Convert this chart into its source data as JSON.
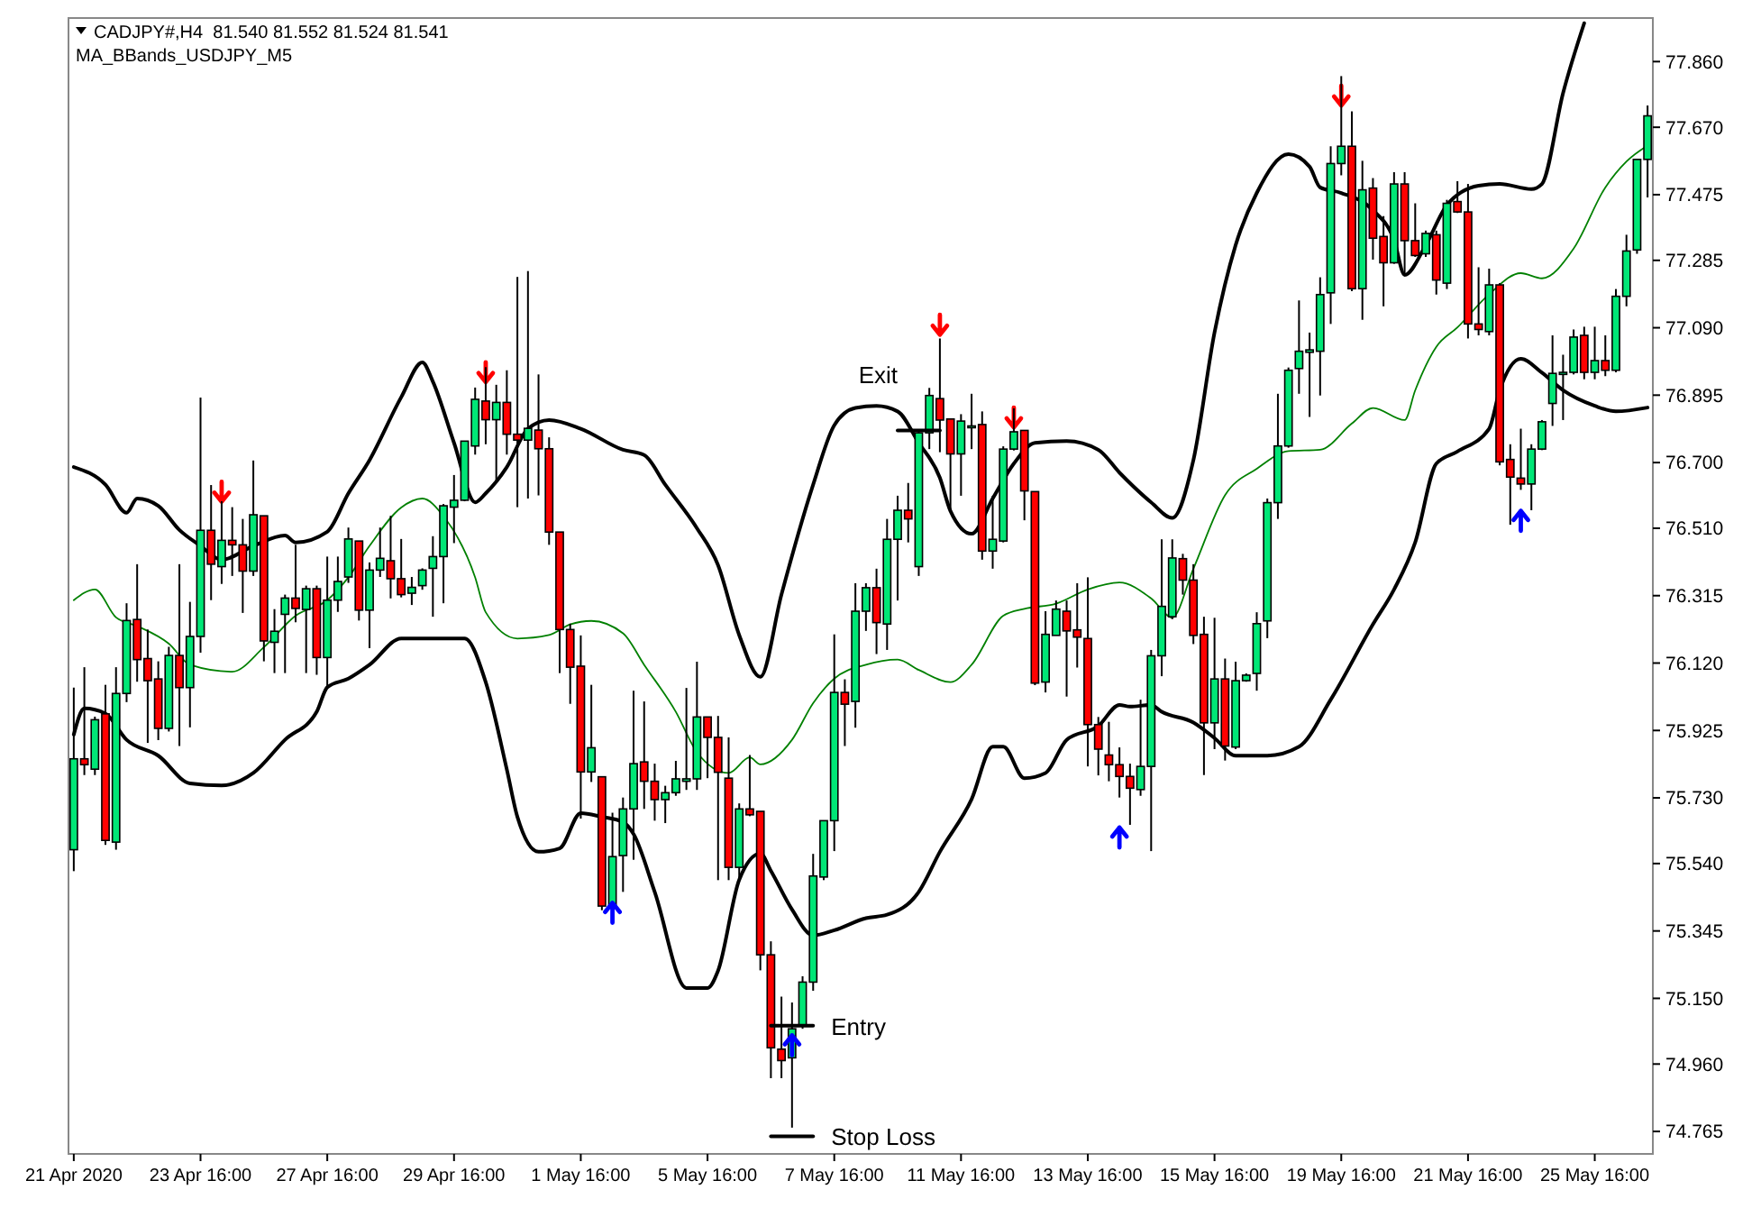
{
  "chart_data": {
    "type": "candlestick",
    "title": "CADJPY#,H4  81.540 81.552 81.524 81.541",
    "subtitle": "MA_BBands_USDJPY_M5",
    "categories": [
      "21 Apr 2020",
      null,
      null,
      null,
      null,
      null,
      null,
      null,
      null,
      null,
      null,
      null,
      "23 Apr 16:00",
      null,
      null,
      null,
      null,
      null,
      null,
      null,
      null,
      null,
      null,
      null,
      "27 Apr 16:00",
      null,
      null,
      null,
      null,
      null,
      null,
      null,
      null,
      null,
      null,
      null,
      "29 Apr 16:00",
      null,
      null,
      null,
      null,
      null,
      null,
      null,
      null,
      null,
      null,
      null,
      "1 May 16:00",
      null,
      null,
      null,
      null,
      null,
      null,
      null,
      null,
      null,
      null,
      null,
      "5 May 16:00",
      null,
      null,
      null,
      null,
      null,
      null,
      null,
      null,
      null,
      null,
      null,
      "7 May 16:00",
      null,
      null,
      null,
      null,
      null,
      null,
      null,
      null,
      null,
      null,
      null,
      "11 May 16:00",
      null,
      null,
      null,
      null,
      null,
      null,
      null,
      null,
      null,
      null,
      null,
      "13 May 16:00",
      null,
      null,
      null,
      null,
      null,
      null,
      null,
      null,
      null,
      null,
      null,
      "15 May 16:00",
      null,
      null,
      null,
      null,
      null,
      null,
      null,
      null,
      null,
      null,
      null,
      "19 May 16:00",
      null,
      null,
      null,
      null,
      null,
      null,
      null,
      null,
      null,
      null,
      null,
      "21 May 16:00",
      null,
      null,
      null,
      null,
      null,
      null,
      null,
      null,
      null,
      null,
      null,
      "25 May 16:00",
      null,
      null,
      null,
      null,
      null
    ],
    "colors": [
      "#00e676",
      "#ff0000",
      "#00e676",
      "#ff0000",
      "#00e676",
      "#00e676",
      "#ff0000",
      "#ff0000",
      "#ff0000",
      "#00e676",
      "#ff0000",
      "#00e676",
      "#00e676",
      "#ff0000",
      "#00e676",
      "#ff0000",
      "#ff0000",
      "#00e676",
      "#ff0000",
      "#00e676",
      "#00e676",
      "#ff0000",
      "#00e676",
      "#ff0000",
      "#00e676",
      "#00e676",
      "#00e676",
      "#ff0000",
      "#00e676",
      "#00e676",
      "#ff0000",
      "#ff0000",
      "#00e676",
      "#00e676",
      "#00e676",
      "#00e676",
      "#00e676",
      "#00e676",
      "#00e676",
      "#ff0000",
      "#00e676",
      "#ff0000",
      "#ff0000",
      "#00e676",
      "#ff0000",
      "#ff0000",
      "#ff0000",
      "#ff0000",
      "#ff0000",
      "#00e676",
      "#ff0000",
      "#00e676",
      "#00e676",
      "#00e676",
      "#ff0000",
      "#ff0000",
      "#00e676",
      "#00e676",
      "#00e676",
      "#00e676",
      "#ff0000",
      "#ff0000",
      "#ff0000",
      "#00e676",
      "#ff0000",
      "#ff0000",
      "#ff0000",
      "#ff0000",
      "#00e676",
      "#00e676",
      "#00e676",
      "#00e676",
      "#00e676",
      "#ff0000",
      "#00e676",
      "#00e676",
      "#ff0000",
      "#00e676",
      "#00e676",
      "#ff0000",
      "#00e676",
      "#00e676",
      "#ff0000",
      "#ff0000",
      "#00e676",
      "#00e676",
      "#ff0000",
      "#00e676",
      "#00e676",
      "#00e676",
      "#ff0000",
      "#ff0000",
      "#00e676",
      "#00e676",
      "#ff0000",
      "#ff0000",
      "#ff0000",
      "#ff0000",
      "#ff0000",
      "#ff0000",
      "#ff0000",
      "#00e676",
      "#00e676",
      "#00e676",
      "#00e676",
      "#ff0000",
      "#ff0000",
      "#ff0000",
      "#00e676",
      "#ff0000",
      "#00e676",
      "#00e676",
      "#00e676",
      "#00e676",
      "#00e676",
      "#00e676",
      "#00e676",
      "#00e676",
      "#00e676",
      "#00e676",
      "#00e676",
      "#ff0000",
      "#00e676",
      "#ff0000",
      "#ff0000",
      "#00e676",
      "#ff0000",
      "#ff0000",
      "#00e676",
      "#ff0000",
      "#00e676",
      "#ff0000",
      "#ff0000",
      "#ff0000",
      "#00e676",
      "#ff0000",
      "#ff0000",
      "#ff0000",
      "#00e676",
      "#00e676",
      "#00e676",
      "#00e676",
      "#00e676",
      "#ff0000",
      "#00e676",
      "#ff0000",
      "#00e676",
      "#00e676",
      "#00e676",
      "#00e676"
    ],
    "ohlc": [
      [
        75.58,
        76.049,
        75.518,
        75.843
      ],
      [
        75.843,
        76.108,
        75.796,
        75.826
      ],
      [
        75.813,
        75.965,
        75.796,
        75.956
      ],
      [
        75.973,
        76.057,
        75.594,
        75.607
      ],
      [
        75.602,
        76.108,
        75.58,
        76.032
      ],
      [
        76.032,
        76.293,
        76.007,
        76.243
      ],
      [
        76.246,
        76.406,
        76.066,
        76.13
      ],
      [
        76.133,
        76.217,
        75.889,
        76.069
      ],
      [
        76.074,
        76.125,
        75.897,
        75.931
      ],
      [
        75.931,
        76.167,
        75.922,
        76.142
      ],
      [
        76.142,
        76.406,
        75.88,
        76.049
      ],
      [
        76.049,
        76.297,
        75.934,
        76.197
      ],
      [
        76.197,
        76.888,
        76.15,
        76.504
      ],
      [
        76.504,
        76.635,
        76.302,
        76.406
      ],
      [
        76.399,
        76.588,
        76.349,
        76.475
      ],
      [
        76.475,
        76.571,
        76.372,
        76.462
      ],
      [
        76.462,
        76.537,
        76.265,
        76.386
      ],
      [
        76.386,
        76.706,
        76.372,
        76.549
      ],
      [
        76.546,
        76.546,
        76.125,
        76.184
      ],
      [
        76.18,
        76.276,
        76.091,
        76.212
      ],
      [
        76.261,
        76.318,
        76.091,
        76.308
      ],
      [
        76.308,
        76.462,
        76.238,
        76.278
      ],
      [
        76.275,
        76.344,
        76.091,
        76.335
      ],
      [
        76.335,
        76.344,
        76.086,
        76.136
      ],
      [
        76.136,
        76.428,
        76.049,
        76.302
      ],
      [
        76.302,
        76.428,
        76.268,
        76.356
      ],
      [
        76.369,
        76.512,
        76.352,
        76.479
      ],
      [
        76.473,
        76.473,
        76.243,
        76.273
      ],
      [
        76.273,
        76.411,
        76.163,
        76.389
      ],
      [
        76.389,
        76.512,
        76.369,
        76.423
      ],
      [
        76.416,
        76.546,
        76.307,
        76.364
      ],
      [
        76.364,
        76.479,
        76.31,
        76.318
      ],
      [
        76.322,
        76.369,
        76.288,
        76.339
      ],
      [
        76.344,
        76.394,
        76.332,
        76.389
      ],
      [
        76.394,
        76.487,
        76.254,
        76.428
      ],
      [
        76.428,
        76.58,
        76.293,
        76.575
      ],
      [
        76.571,
        76.664,
        76.467,
        76.591
      ],
      [
        76.591,
        76.762,
        76.588,
        76.762
      ],
      [
        76.748,
        76.917,
        76.723,
        76.883
      ],
      [
        76.878,
        76.976,
        76.753,
        76.824
      ],
      [
        76.824,
        76.925,
        76.642,
        76.874
      ],
      [
        76.874,
        76.967,
        76.723,
        76.782
      ],
      [
        76.782,
        77.237,
        76.571,
        76.765
      ],
      [
        76.765,
        77.254,
        76.596,
        76.799
      ],
      [
        76.794,
        76.955,
        76.605,
        76.74
      ],
      [
        76.74,
        76.773,
        76.462,
        76.499
      ],
      [
        76.499,
        76.499,
        76.091,
        76.217
      ],
      [
        76.217,
        76.234,
        76.002,
        76.108
      ],
      [
        76.111,
        76.2,
        75.67,
        75.805
      ],
      [
        75.805,
        76.057,
        75.776,
        75.875
      ],
      [
        75.791,
        75.791,
        75.405,
        75.417
      ],
      [
        75.417,
        75.687,
        75.408,
        75.56
      ],
      [
        75.563,
        75.731,
        75.458,
        75.698
      ],
      [
        75.698,
        76.04,
        75.551,
        75.829
      ],
      [
        75.834,
        76.009,
        75.698,
        75.778
      ],
      [
        75.778,
        75.829,
        75.664,
        75.725
      ],
      [
        75.725,
        75.765,
        75.657,
        75.745
      ],
      [
        75.745,
        75.837,
        75.736,
        75.785
      ],
      [
        75.778,
        76.048,
        75.753,
        75.785
      ],
      [
        75.785,
        76.124,
        75.753,
        75.964
      ],
      [
        75.964,
        75.964,
        75.787,
        75.905
      ],
      [
        75.905,
        75.967,
        75.492,
        75.804
      ],
      [
        75.787,
        75.905,
        75.492,
        75.529
      ],
      [
        75.529,
        75.714,
        75.495,
        75.698
      ],
      [
        75.698,
        75.854,
        75.677,
        75.681
      ],
      [
        75.691,
        75.691,
        75.231,
        75.276
      ],
      [
        75.276,
        75.315,
        74.919,
        75.007
      ],
      [
        75.003,
        75.155,
        74.919,
        74.97
      ],
      [
        74.978,
        75.138,
        74.776,
        75.062
      ],
      [
        75.071,
        75.214,
        75.062,
        75.197
      ],
      [
        75.197,
        75.568,
        75.172,
        75.504
      ],
      [
        75.501,
        75.664,
        75.492,
        75.664
      ],
      [
        75.664,
        76.203,
        75.576,
        76.035
      ],
      [
        76.035,
        76.073,
        75.88,
        76.001
      ],
      [
        76.009,
        76.351,
        75.933,
        76.27
      ],
      [
        76.27,
        76.351,
        76.213,
        76.338
      ],
      [
        76.338,
        76.393,
        76.146,
        76.237
      ],
      [
        76.233,
        76.537,
        76.158,
        76.478
      ],
      [
        76.478,
        76.604,
        76.301,
        76.562
      ],
      [
        76.562,
        76.641,
        76.469,
        76.537
      ],
      [
        76.399,
        76.793,
        76.372,
        76.786
      ],
      [
        76.786,
        76.916,
        76.739,
        76.894
      ],
      [
        76.885,
        77.059,
        76.73,
        76.823
      ],
      [
        76.826,
        76.826,
        76.562,
        76.725
      ],
      [
        76.725,
        76.84,
        76.604,
        76.82
      ],
      [
        76.806,
        76.899,
        76.739,
        76.806
      ],
      [
        76.81,
        76.848,
        76.419,
        76.444
      ],
      [
        76.444,
        76.604,
        76.393,
        76.478
      ],
      [
        76.473,
        76.747,
        76.469,
        76.739
      ],
      [
        76.739,
        76.857,
        76.735,
        76.789
      ],
      [
        76.793,
        76.793,
        76.533,
        76.618
      ],
      [
        76.616,
        76.616,
        76.056,
        76.062
      ],
      [
        76.065,
        76.27,
        76.035,
        76.203
      ],
      [
        76.2,
        76.301,
        76.2,
        76.276
      ],
      [
        76.27,
        76.301,
        76.023,
        76.213
      ],
      [
        76.216,
        76.351,
        76.107,
        76.195
      ],
      [
        76.191,
        76.368,
        75.821,
        75.942
      ],
      [
        75.942,
        75.964,
        75.795,
        75.871
      ],
      [
        75.854,
        75.95,
        75.778,
        75.826
      ],
      [
        75.826,
        75.876,
        75.731,
        75.792
      ],
      [
        75.792,
        75.829,
        75.652,
        75.758
      ],
      [
        75.754,
        76.014,
        75.736,
        75.821
      ],
      [
        75.821,
        76.158,
        75.576,
        76.141
      ],
      [
        76.141,
        76.478,
        76.082,
        76.284
      ],
      [
        76.254,
        76.478,
        76.247,
        76.424
      ],
      [
        76.422,
        76.436,
        76.318,
        76.36
      ],
      [
        76.36,
        76.406,
        76.175,
        76.2
      ],
      [
        76.203,
        76.254,
        75.796,
        75.947
      ],
      [
        75.947,
        76.251,
        75.871,
        76.074
      ],
      [
        76.074,
        76.133,
        75.838,
        75.88
      ],
      [
        75.877,
        76.124,
        75.871,
        76.069
      ],
      [
        76.069,
        76.09,
        76.066,
        76.085
      ],
      [
        76.09,
        76.267,
        76.04,
        76.234
      ],
      [
        76.242,
        76.596,
        76.192,
        76.584
      ],
      [
        76.584,
        76.899,
        76.537,
        76.748
      ],
      [
        76.748,
        76.975,
        76.743,
        76.967
      ],
      [
        76.972,
        77.169,
        76.899,
        77.022
      ],
      [
        77.019,
        77.076,
        76.832,
        77.026
      ],
      [
        77.022,
        77.236,
        76.894,
        77.186
      ],
      [
        77.191,
        77.615,
        77.101,
        77.565
      ],
      [
        77.565,
        77.818,
        77.531,
        77.615
      ],
      [
        77.615,
        77.716,
        77.196,
        77.203
      ],
      [
        77.203,
        77.573,
        77.113,
        77.489
      ],
      [
        77.494,
        77.523,
        77.287,
        77.349
      ],
      [
        77.354,
        77.413,
        77.152,
        77.278
      ],
      [
        77.278,
        77.54,
        77.275,
        77.506
      ],
      [
        77.506,
        77.54,
        77.245,
        77.342
      ],
      [
        77.342,
        77.45,
        77.295,
        77.299
      ],
      [
        77.304,
        77.371,
        77.295,
        77.363
      ],
      [
        77.359,
        77.371,
        77.186,
        77.228
      ],
      [
        77.219,
        77.46,
        77.202,
        77.45
      ],
      [
        77.455,
        77.514,
        77.422,
        77.425
      ],
      [
        77.425,
        77.506,
        77.059,
        77.101
      ],
      [
        77.101,
        77.265,
        77.068,
        77.085
      ],
      [
        77.079,
        77.261,
        77.068,
        77.214
      ],
      [
        77.214,
        77.219,
        76.692,
        76.702
      ],
      [
        76.709,
        76.753,
        76.52,
        76.658
      ],
      [
        76.655,
        76.798,
        76.621,
        76.638
      ],
      [
        76.638,
        76.753,
        76.562,
        76.739
      ],
      [
        76.739,
        76.823,
        76.736,
        76.818
      ],
      [
        76.871,
        77.068,
        76.806,
        76.958
      ],
      [
        76.955,
        77.012,
        76.823,
        76.961
      ],
      [
        76.961,
        77.085,
        76.955,
        77.063
      ],
      [
        77.068,
        77.093,
        76.941,
        76.961
      ],
      [
        76.961,
        77.093,
        76.941,
        76.995
      ],
      [
        76.995,
        77.068,
        76.95,
        76.967
      ],
      [
        76.967,
        77.202,
        76.961,
        77.181
      ],
      [
        77.181,
        77.359,
        77.152,
        77.312
      ],
      [
        77.315,
        77.577,
        77.304,
        77.577
      ],
      [
        77.577,
        77.733,
        77.467,
        77.703
      ]
    ],
    "series": [
      {
        "type": "line",
        "color": "#000000",
        "values": [
          76.687,
          null,
          null,
          76.636,
          null,
          76.555,
          76.596,
          null,
          76.575,
          null,
          76.505,
          null,
          76.459,
          null,
          76.419,
          null,
          null,
          76.459,
          null,
          null,
          76.489,
          76.469,
          null,
          null,
          76.5,
          null,
          76.611,
          null,
          76.707,
          null,
          null,
          76.889,
          null,
          76.99,
          76.934,
          null,
          76.757,
          null,
          76.585,
          76.611,
          null,
          76.687,
          null,
          76.798,
          null,
          76.823,
          null,
          null,
          76.798,
          null,
          null,
          null,
          76.737,
          null,
          76.722,
          null,
          76.636,
          null,
          null,
          76.51,
          null,
          76.403,
          null,
          76.201,
          null,
          76.08,
          null,
          76.318,
          null,
          null,
          76.636,
          null,
          76.808,
          null,
          76.858,
          null,
          76.864,
          null,
          76.848,
          null,
          76.757,
          null,
          76.656,
          76.56,
          null,
          76.494,
          null,
          76.596,
          null,
          76.697,
          null,
          76.757,
          null,
          null,
          76.762,
          null,
          null,
          76.737,
          null,
          76.671,
          null,
          null,
          76.585,
          null,
          76.54,
          null,
          76.707,
          null,
          77.076,
          null,
          77.329,
          null,
          77.48,
          null,
          null,
          77.592,
          null,
          77.556,
          77.496,
          null,
          77.48,
          null,
          null,
          77.43,
          null,
          77.344,
          77.243,
          null,
          77.329,
          null,
          77.445,
          null,
          null,
          77.501,
          null,
          77.506,
          null,
          null,
          77.491,
          77.506,
          null,
          77.769,
          null,
          77.971,
          null,
          null,
          null,
          null,
          null,
          null
        ]
      },
      {
        "type": "line",
        "color": "#008000",
        "values": [
          76.302,
          null,
          76.333,
          null,
          76.252,
          null,
          76.227,
          null,
          null,
          76.176,
          null,
          76.115,
          null,
          null,
          null,
          76.095,
          null,
          null,
          76.166,
          null,
          null,
          76.257,
          null,
          null,
          76.302,
          null,
          76.368,
          null,
          76.459,
          null,
          null,
          76.57,
          null,
          76.596,
          null,
          76.545,
          null,
          null,
          76.368,
          76.267,
          null,
          null,
          76.191,
          null,
          null,
          76.201,
          null,
          76.232,
          null,
          76.242,
          null,
          null,
          76.206,
          null,
          76.115,
          null,
          null,
          75.979,
          null,
          75.862,
          null,
          null,
          75.802,
          null,
          75.847,
          75.827,
          null,
          null,
          75.898,
          null,
          76.004,
          null,
          76.075,
          null,
          null,
          76.115,
          null,
          null,
          76.13,
          null,
          76.1,
          null,
          null,
          76.065,
          null,
          76.115,
          null,
          null,
          76.257,
          null,
          76.277,
          null,
          null,
          76.292,
          null,
          null,
          76.333,
          null,
          null,
          76.353,
          null,
          null,
          76.307,
          null,
          76.252,
          null,
          76.393,
          null,
          null,
          76.606,
          null,
          null,
          76.682,
          null,
          null,
          76.733,
          null,
          null,
          76.737,
          null,
          null,
          76.813,
          null,
          76.858,
          null,
          null,
          76.823,
          76.909,
          null,
          77.035,
          null,
          77.091,
          null,
          null,
          77.187,
          null,
          null,
          77.248,
          null,
          77.233,
          null,
          null,
          77.319,
          null,
          null,
          77.496,
          null,
          77.571,
          null,
          77.617
        ]
      },
      {
        "type": "line",
        "color": "#000000",
        "values": [
          75.913,
          75.989,
          null,
          75.974,
          null,
          75.898,
          null,
          null,
          75.852,
          null,
          null,
          75.772,
          null,
          null,
          75.766,
          null,
          null,
          75.802,
          null,
          null,
          75.898,
          null,
          null,
          75.979,
          76.05,
          null,
          76.075,
          null,
          76.115,
          null,
          null,
          76.191,
          null,
          null,
          76.191,
          null,
          null,
          76.191,
          null,
          76.065,
          null,
          75.812,
          75.675,
          null,
          75.574,
          null,
          75.584,
          null,
          75.686,
          null,
          75.675,
          null,
          75.66,
          75.625,
          null,
          75.458,
          null,
          null,
          75.18,
          null,
          75.18,
          75.23,
          null,
          75.493,
          null,
          75.569,
          75.519,
          null,
          75.407,
          null,
          75.332,
          null,
          75.347,
          null,
          null,
          75.382,
          null,
          75.392,
          null,
          null,
          75.458,
          null,
          75.574,
          null,
          null,
          75.726,
          null,
          75.878,
          75.878,
          null,
          75.787,
          null,
          75.802,
          null,
          75.898,
          null,
          null,
          75.938,
          null,
          75.999,
          75.994,
          null,
          75.999,
          75.979,
          null,
          null,
          75.948,
          null,
          75.903,
          null,
          75.852,
          null,
          null,
          75.852,
          null,
          null,
          75.878,
          null,
          null,
          76.014,
          null,
          null,
          null,
          76.232,
          null,
          76.333,
          null,
          76.469,
          null,
          76.697,
          null,
          76.732,
          null,
          null,
          76.798,
          76.909,
          null,
          77.0,
          null,
          76.96,
          null,
          76.909,
          null,
          null,
          76.864,
          null,
          76.848,
          null,
          null,
          76.859
        ]
      },
      {
        "type": "line",
        "name": "Exit",
        "color": "#000000",
        "values": [
          null,
          null,
          null,
          null,
          null,
          null,
          null,
          null,
          null,
          null,
          null,
          null,
          null,
          null,
          null,
          null,
          null,
          null,
          null,
          null,
          null,
          null,
          null,
          null,
          null,
          null,
          null,
          null,
          null,
          null,
          null,
          null,
          null,
          null,
          null,
          null,
          null,
          null,
          null,
          null,
          null,
          null,
          null,
          null,
          null,
          null,
          null,
          null,
          null,
          null,
          null,
          null,
          null,
          null,
          null,
          null,
          null,
          null,
          null,
          null,
          null,
          null,
          null,
          null,
          null,
          null,
          null,
          null,
          null,
          null,
          null,
          null,
          null,
          null,
          null,
          null,
          null,
          null,
          76.793,
          76.793,
          76.793,
          76.793,
          76.793,
          null,
          null,
          null,
          null,
          null,
          null,
          null,
          null,
          null,
          null,
          null,
          null,
          null,
          null,
          null,
          null,
          null,
          null,
          null,
          null,
          null,
          null,
          null,
          null,
          null,
          null,
          null,
          null,
          null,
          null,
          null,
          null,
          null,
          null,
          null,
          null,
          null,
          null,
          null,
          null,
          null,
          null,
          null,
          null,
          null,
          null,
          null,
          null,
          null,
          null,
          null,
          null,
          null,
          null,
          null,
          null,
          null,
          null,
          null,
          null,
          null,
          null,
          null,
          null,
          null,
          null,
          null
        ]
      },
      {
        "type": "line",
        "name": "Entry",
        "color": "#000000",
        "values": [
          null,
          null,
          null,
          null,
          null,
          null,
          null,
          null,
          null,
          null,
          null,
          null,
          null,
          null,
          null,
          null,
          null,
          null,
          null,
          null,
          null,
          null,
          null,
          null,
          null,
          null,
          null,
          null,
          null,
          null,
          null,
          null,
          null,
          null,
          null,
          null,
          null,
          null,
          null,
          null,
          null,
          null,
          null,
          null,
          null,
          null,
          null,
          null,
          null,
          null,
          null,
          null,
          null,
          null,
          null,
          null,
          null,
          null,
          null,
          null,
          null,
          null,
          null,
          null,
          null,
          null,
          75.071,
          75.071,
          75.071,
          75.071,
          75.071,
          null,
          null,
          null,
          null,
          null,
          null,
          null,
          null,
          null,
          null,
          null,
          null,
          null,
          null,
          null,
          null,
          null,
          null,
          null,
          null,
          null,
          null,
          null,
          null,
          null,
          null,
          null,
          null,
          null,
          null,
          null,
          null,
          null,
          null,
          null,
          null,
          null,
          null,
          null,
          null,
          null,
          null,
          null,
          null,
          null,
          null,
          null,
          null,
          null,
          null,
          null,
          null,
          null,
          null,
          null,
          null,
          null,
          null,
          null,
          null,
          null,
          null,
          null,
          null,
          null,
          null,
          null,
          null,
          null,
          null,
          null,
          null,
          null,
          null,
          null,
          null,
          null,
          null,
          null
        ]
      },
      {
        "type": "line",
        "name": "Stop Loss",
        "color": "#000000",
        "values": [
          null,
          null,
          null,
          null,
          null,
          null,
          null,
          null,
          null,
          null,
          null,
          null,
          null,
          null,
          null,
          null,
          null,
          null,
          null,
          null,
          null,
          null,
          null,
          null,
          null,
          null,
          null,
          null,
          null,
          null,
          null,
          null,
          null,
          null,
          null,
          null,
          null,
          null,
          null,
          null,
          null,
          null,
          null,
          null,
          null,
          null,
          null,
          null,
          null,
          null,
          null,
          null,
          null,
          null,
          null,
          null,
          null,
          null,
          null,
          null,
          null,
          null,
          null,
          null,
          null,
          null,
          74.751,
          74.751,
          74.751,
          74.751,
          74.751,
          null,
          null,
          null,
          null,
          null,
          null,
          null,
          null,
          null,
          null,
          null,
          null,
          null,
          null,
          null,
          null,
          null,
          null,
          null,
          null,
          null,
          null,
          null,
          null,
          null,
          null,
          null,
          null,
          null,
          null,
          null,
          null,
          null,
          null,
          null,
          null,
          null,
          null,
          null,
          null,
          null,
          null,
          null,
          null,
          null,
          null,
          null,
          null,
          null,
          null,
          null,
          null,
          null,
          null,
          null,
          null,
          null,
          null,
          null,
          null,
          null,
          null,
          null,
          null,
          null,
          null,
          null,
          null,
          null,
          null,
          null,
          null,
          null,
          null,
          null,
          null,
          null,
          null,
          null
        ]
      },
      {
        "type": "scatter",
        "color": "#ff0000",
        "values": [
          null,
          null,
          null,
          null,
          null,
          null,
          null,
          null,
          null,
          null,
          null,
          null,
          null,
          null,
          76.613,
          null,
          null,
          null,
          null,
          null,
          null,
          null,
          null,
          null,
          null,
          null,
          null,
          null,
          null,
          null,
          null,
          null,
          null,
          null,
          null,
          null,
          null,
          null,
          null,
          76.959,
          null,
          null,
          null,
          null,
          null,
          null,
          null,
          null,
          null,
          null,
          null,
          null,
          null,
          null,
          null,
          null,
          null,
          null,
          null,
          null,
          null,
          null,
          null,
          null,
          null,
          null,
          null,
          null,
          null,
          null,
          null,
          null,
          null,
          null,
          null,
          null,
          null,
          null,
          null,
          null,
          null,
          null,
          77.096,
          null,
          null,
          null,
          null,
          null,
          null,
          76.828,
          null,
          null,
          null,
          null,
          null,
          null,
          null,
          null,
          null,
          null,
          null,
          null,
          null,
          null,
          null,
          null,
          null,
          null,
          null,
          null,
          null,
          null,
          null,
          null,
          null,
          null,
          null,
          null,
          null,
          null,
          77.759,
          null,
          null,
          null,
          null,
          null,
          null,
          null,
          null,
          null,
          null,
          null,
          null,
          null,
          null,
          null,
          null,
          null,
          null,
          null,
          null,
          null,
          null,
          null,
          null,
          null,
          null,
          null,
          null,
          null
        ]
      },
      {
        "type": "scatter",
        "color": "#0000ff",
        "values": [
          null,
          null,
          null,
          null,
          null,
          null,
          null,
          null,
          null,
          null,
          null,
          null,
          null,
          null,
          null,
          null,
          null,
          null,
          null,
          null,
          null,
          null,
          null,
          null,
          null,
          null,
          null,
          null,
          null,
          null,
          null,
          null,
          null,
          null,
          null,
          null,
          null,
          null,
          null,
          null,
          null,
          null,
          null,
          null,
          null,
          null,
          null,
          null,
          null,
          null,
          null,
          75.4,
          null,
          null,
          null,
          null,
          null,
          null,
          null,
          null,
          null,
          null,
          null,
          null,
          null,
          null,
          null,
          null,
          75.017,
          null,
          null,
          null,
          null,
          null,
          null,
          null,
          null,
          null,
          null,
          null,
          null,
          null,
          null,
          null,
          null,
          null,
          null,
          null,
          null,
          null,
          null,
          null,
          null,
          null,
          null,
          null,
          null,
          null,
          null,
          75.618,
          null,
          null,
          null,
          null,
          null,
          null,
          null,
          null,
          null,
          null,
          null,
          null,
          null,
          null,
          null,
          null,
          null,
          null,
          null,
          null,
          null,
          null,
          null,
          null,
          null,
          null,
          null,
          null,
          null,
          null,
          null,
          null,
          null,
          null,
          null,
          null,
          null,
          76.534,
          null,
          null,
          null,
          null,
          null,
          null,
          null,
          null,
          null,
          null,
          null,
          null
        ]
      }
    ],
    "ylim": [
      74.7,
      77.986
    ],
    "yticks": [
      {
        "value": 74.96,
        "label": "74.960"
      },
      74.765,
      {
        "value": 75.15,
        "label": "75.150"
      },
      75.345,
      {
        "value": 75.54,
        "label": "75.540"
      },
      {
        "value": 75.73,
        "label": "75.730"
      },
      75.925,
      {
        "value": 76.12,
        "label": "76.120"
      },
      76.315,
      {
        "value": 76.51,
        "label": "76.510"
      },
      {
        "value": 76.7,
        "label": "76.700"
      },
      76.895,
      {
        "value": 77.09,
        "label": "77.090"
      },
      77.285,
      77.475,
      {
        "value": 77.67,
        "label": "77.670"
      },
      {
        "value": 77.86,
        "label": "77.860"
      }
    ]
  }
}
